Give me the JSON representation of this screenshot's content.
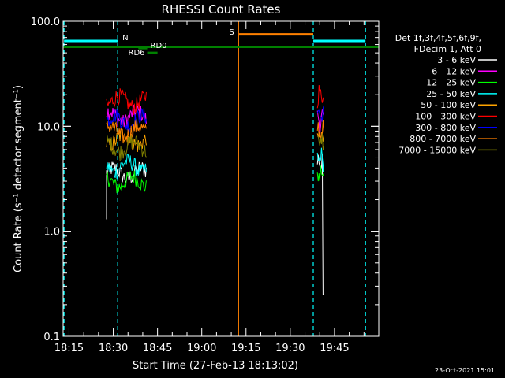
{
  "chart_data": {
    "type": "line",
    "title": "RHESSI Count Rates",
    "xlabel": "Start Time (27-Feb-13 18:13:02)",
    "ylabel": "Count Rate (s⁻¹ detector segment⁻¹)",
    "x_tick_labels": [
      "18:15",
      "18:30",
      "18:45",
      "19:00",
      "19:15",
      "19:30",
      "19:45"
    ],
    "x_tick_minutes": [
      2,
      17,
      32,
      47,
      62,
      77,
      92
    ],
    "x_range_minutes": [
      0,
      107
    ],
    "y_scale": "log",
    "ylim": [
      0.1,
      100
    ],
    "y_tick_labels": [
      "0.1",
      "1.0",
      "10.0",
      "100.0"
    ],
    "y_tick_values": [
      0.1,
      1,
      10,
      100
    ],
    "grid": false,
    "legend_position": "right",
    "legend_header": [
      "Det 1f,3f,4f,5f,6f,9f,",
      "FDecim 1, Att 0"
    ],
    "series": [
      {
        "name": "3 - 6 keV",
        "color": "#ffffff",
        "segments": [
          [
            14.7,
            28.2,
            3.6,
            1.3
          ],
          [
            86.2,
            88.4,
            4.5,
            0.0
          ]
        ]
      },
      {
        "name": "6 - 12 keV",
        "color": "#ff00ff",
        "segments": [
          [
            14.7,
            28.2,
            12.5,
            0.0
          ],
          [
            86.2,
            88.4,
            11.5,
            0.0
          ]
        ]
      },
      {
        "name": "12 - 25 keV",
        "color": "#00ff00",
        "segments": [
          [
            14.7,
            28.2,
            3.0,
            0.0
          ],
          [
            86.2,
            88.4,
            3.5,
            0.0
          ]
        ]
      },
      {
        "name": "25 - 50 keV",
        "color": "#00ffff",
        "segments": [
          [
            14.7,
            28.2,
            4.2,
            0.0
          ],
          [
            86.2,
            88.4,
            5.0,
            0.0
          ]
        ]
      },
      {
        "name": "50 - 100 keV",
        "color": "#ffa500",
        "segments": [
          [
            14.7,
            28.2,
            7.5,
            0.0
          ],
          [
            86.2,
            88.4,
            8.0,
            0.0
          ]
        ]
      },
      {
        "name": "100 - 300 keV",
        "color": "#ff0000",
        "segments": [
          [
            14.7,
            28.2,
            17.5,
            0.0
          ],
          [
            86.2,
            88.4,
            20.0,
            0.0
          ]
        ]
      },
      {
        "name": "300 - 800 keV",
        "color": "#0000ff",
        "segments": [
          [
            14.7,
            28.2,
            11.5,
            0.0
          ],
          [
            86.2,
            88.4,
            13.0,
            0.0
          ]
        ]
      },
      {
        "name": "800 - 7000 keV",
        "color": "#ff8000",
        "segments": [
          [
            14.7,
            28.2,
            9.0,
            0.0
          ],
          [
            86.2,
            88.4,
            9.0,
            0.0
          ]
        ]
      },
      {
        "name": "7000 - 15000 keV",
        "color": "#808000",
        "segments": [
          [
            14.7,
            28.2,
            6.5,
            0.0
          ],
          [
            86.2,
            88.4,
            7.0,
            0.0
          ]
        ]
      }
    ],
    "annotations": {
      "night_label": "N",
      "saa_label": "S",
      "rd6_label": "RD6",
      "rd0_label": "RD0",
      "night_markers_minutes": [
        0.3,
        18.5,
        84.8,
        102.5
      ],
      "saa_marker_minute": 59.5,
      "cyan_bars": [
        [
          0.3,
          18.5,
          65
        ],
        [
          84.8,
          102.5,
          65
        ]
      ],
      "orange_bar": [
        59.5,
        84.8,
        75
      ],
      "green_bar": [
        0,
        107,
        57
      ],
      "rd6_bar": [
        28.5,
        32,
        50
      ],
      "rd0_bar": [
        25.5,
        28.5,
        55
      ]
    },
    "colors": {
      "background": "#000000",
      "axes": "#ffffff",
      "night_marker": "#00ffff",
      "saa_marker": "#ff8000",
      "decimation_bar": "#008000"
    }
  },
  "footer": {
    "date": "23-Oct-2021 15:01"
  }
}
